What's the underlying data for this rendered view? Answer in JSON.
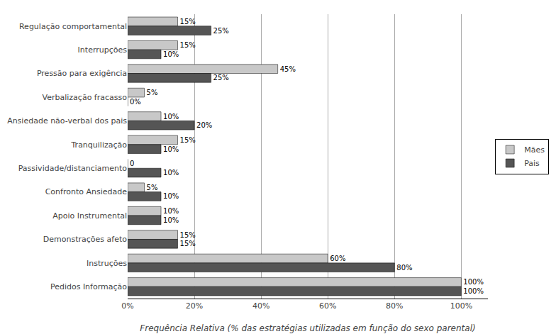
{
  "chart_data": {
    "type": "bar",
    "orientation": "horizontal",
    "categories": [
      "Pedidos Informação",
      "Instruções",
      "Demonstrações afeto",
      "Apoio Instrumental",
      "Confronto Ansiedade",
      "Passividade/distanciamento",
      "Tranquilização",
      "Ansiedade não-verbal dos pais",
      "Verbalização fracasso",
      "Pressão para exigência",
      "Interrupções",
      "Regulação comportamental"
    ],
    "series": [
      {
        "name": "Mães",
        "color": "#c8c8c8",
        "values": [
          100,
          60,
          15,
          10,
          5,
          0,
          15,
          10,
          5,
          45,
          15,
          15
        ],
        "value_labels": [
          "100%",
          "60%",
          "15%",
          "10%",
          "5%",
          "0",
          "15%",
          "10%",
          "5%",
          "45%",
          "15%",
          "15%"
        ]
      },
      {
        "name": "Pais",
        "color": "#555555",
        "values": [
          100,
          80,
          15,
          10,
          10,
          10,
          10,
          20,
          0,
          25,
          10,
          25
        ],
        "value_labels": [
          "100%",
          "80%",
          "15%",
          "10%",
          "10%",
          "10%",
          "10%",
          "20%",
          "0%",
          "25%",
          "10%",
          "25%"
        ]
      }
    ],
    "xlim": [
      0,
      108
    ],
    "xticks": [
      {
        "value": 0,
        "label": "0%"
      },
      {
        "value": 20,
        "label": "20%"
      },
      {
        "value": 40,
        "label": "40%"
      },
      {
        "value": 60,
        "label": "60%"
      },
      {
        "value": 80,
        "label": "80%"
      },
      {
        "value": 100,
        "label": "100%"
      }
    ],
    "xlabel": "Frequência Relativa (% das estratégias utilizadas em função do sexo parental)",
    "grid": true,
    "legend": "right",
    "data_labels": true
  }
}
